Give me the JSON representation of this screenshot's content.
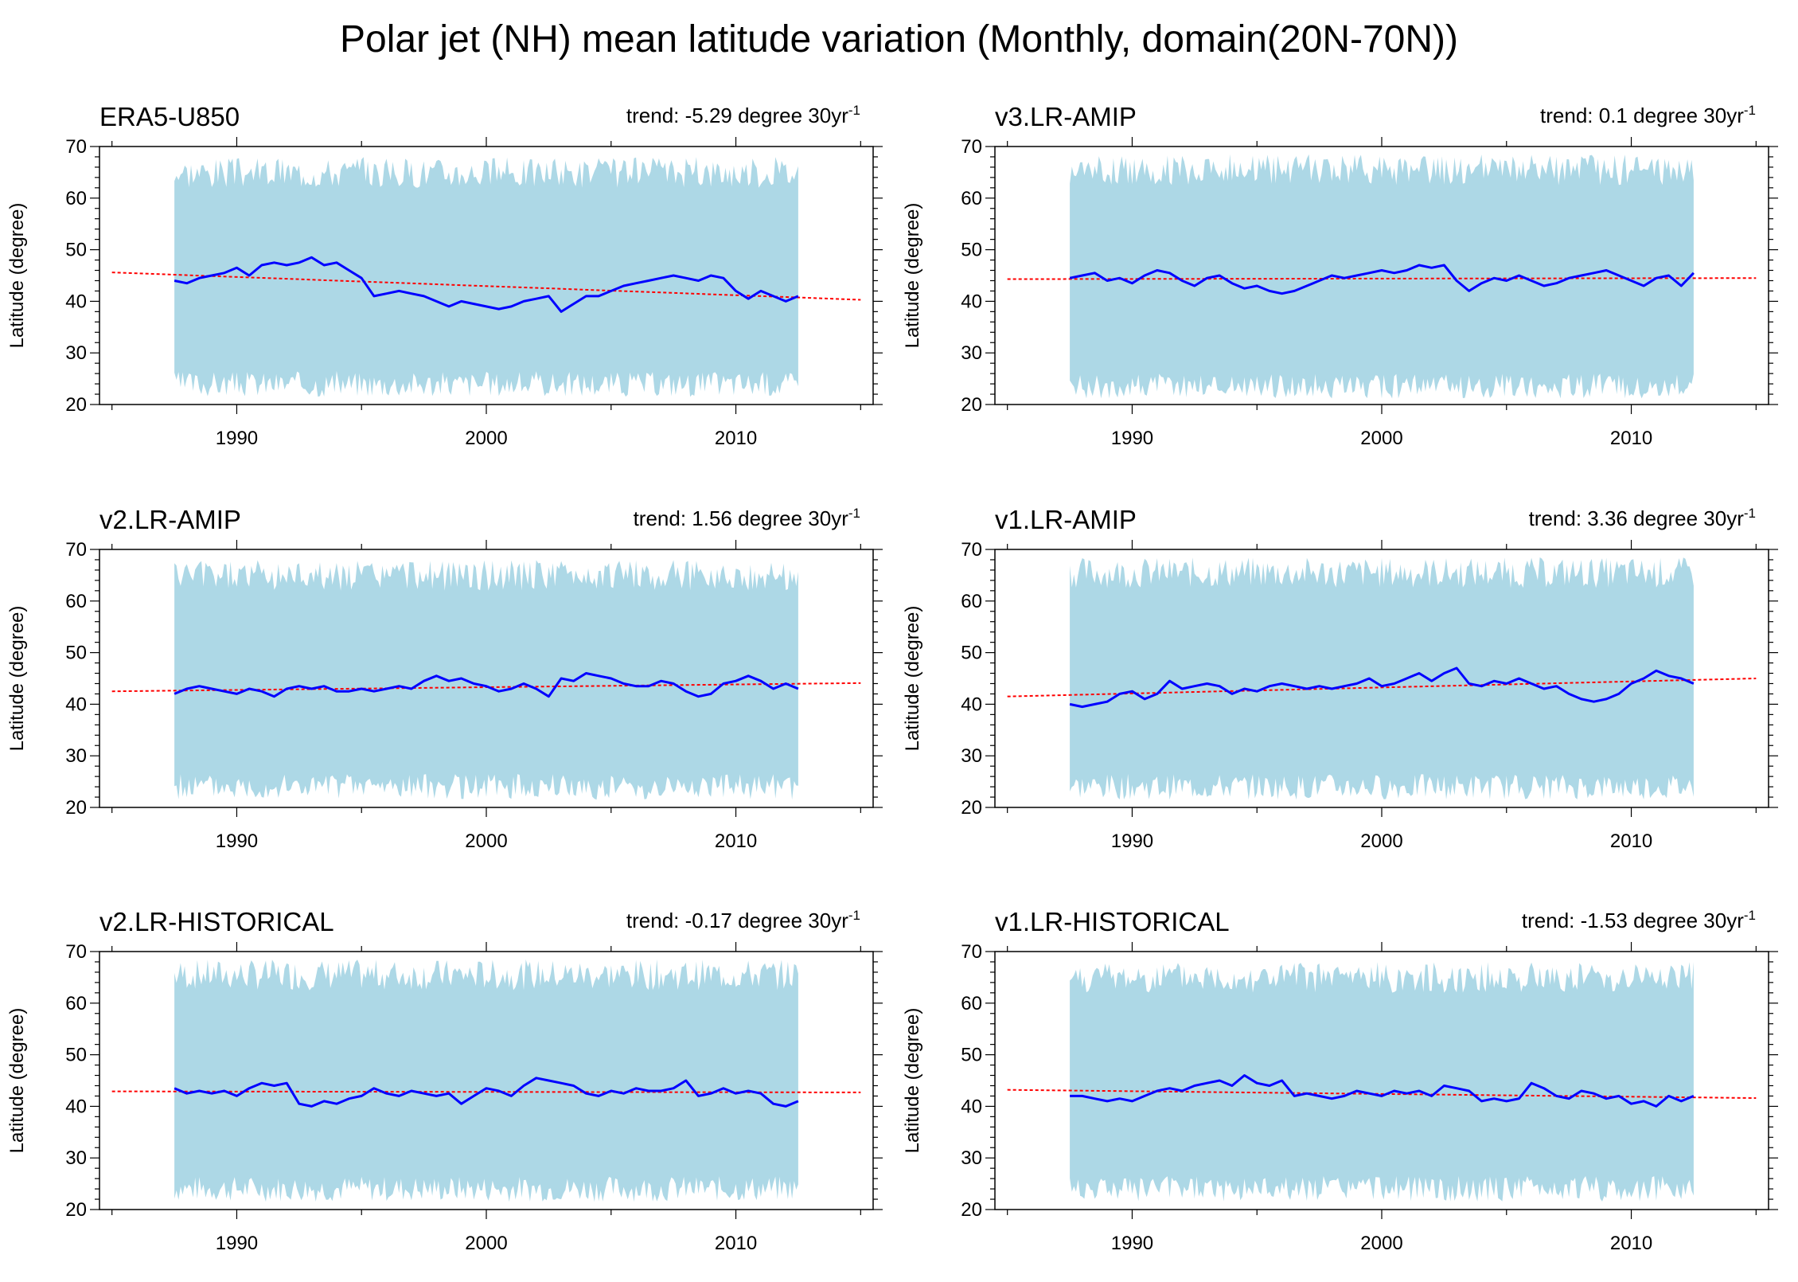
{
  "title": "Polar jet (NH) mean latitude variation (Monthly, domain(20N-70N))",
  "colors": {
    "band": "#add8e6",
    "series": "#0000ff",
    "trend": "#ff0000",
    "axis": "#000000"
  },
  "chart_data": [
    {
      "type": "line",
      "name": "ERA5-U850",
      "trend_label": "trend: -5.29 degree 30yr",
      "trend_unit_exp": "-1",
      "ylabel": "Latitude (degree)",
      "xlabel": "",
      "xlim": [
        1984.5,
        2015.5
      ],
      "ylim": [
        20,
        70
      ],
      "xticks": [
        1990,
        2000,
        2010
      ],
      "yticks": [
        20,
        30,
        40,
        50,
        60,
        70
      ],
      "band": {
        "x_start": 1987.5,
        "x_end": 2012.5,
        "lower_mean": 24,
        "upper_mean": 65
      },
      "series_x": [
        1987.5,
        1988.0,
        1988.5,
        1989.0,
        1989.5,
        1990.0,
        1990.5,
        1991.0,
        1991.5,
        1992.0,
        1992.5,
        1993.0,
        1993.5,
        1994.0,
        1994.5,
        1995.0,
        1995.5,
        1996.0,
        1996.5,
        1997.0,
        1997.5,
        1998.0,
        1998.5,
        1999.0,
        1999.5,
        2000.0,
        2000.5,
        2001.0,
        2001.5,
        2002.0,
        2002.5,
        2003.0,
        2003.5,
        2004.0,
        2004.5,
        2005.0,
        2005.5,
        2006.0,
        2006.5,
        2007.0,
        2007.5,
        2008.0,
        2008.5,
        2009.0,
        2009.5,
        2010.0,
        2010.5,
        2011.0,
        2011.5,
        2012.0,
        2012.5
      ],
      "series_y": [
        44,
        43.5,
        44.5,
        45,
        45.5,
        46.5,
        45,
        47,
        47.5,
        47,
        47.5,
        48.5,
        47,
        47.5,
        46,
        44.5,
        41,
        41.5,
        42,
        41.5,
        41,
        40,
        39,
        40,
        39.5,
        39,
        38.5,
        39,
        40,
        40.5,
        41,
        38,
        39.5,
        41,
        41,
        42,
        43,
        43.5,
        44,
        44.5,
        45,
        44.5,
        44,
        45,
        44.5,
        42,
        40.5,
        42,
        41,
        40,
        41
      ],
      "trend_y": [
        45.6,
        40.3
      ]
    },
    {
      "type": "line",
      "name": "v3.LR-AMIP",
      "trend_label": "trend: 0.1 degree 30yr",
      "trend_unit_exp": "-1",
      "ylabel": "Latitude (degree)",
      "xlabel": "",
      "xlim": [
        1984.5,
        2015.5
      ],
      "ylim": [
        20,
        70
      ],
      "xticks": [
        1990,
        2000,
        2010
      ],
      "yticks": [
        20,
        30,
        40,
        50,
        60,
        70
      ],
      "band": {
        "x_start": 1987.5,
        "x_end": 2012.5,
        "lower_mean": 23.5,
        "upper_mean": 65.5
      },
      "series_x": [
        1987.5,
        1988.0,
        1988.5,
        1989.0,
        1989.5,
        1990.0,
        1990.5,
        1991.0,
        1991.5,
        1992.0,
        1992.5,
        1993.0,
        1993.5,
        1994.0,
        1994.5,
        1995.0,
        1995.5,
        1996.0,
        1996.5,
        1997.0,
        1997.5,
        1998.0,
        1998.5,
        1999.0,
        1999.5,
        2000.0,
        2000.5,
        2001.0,
        2001.5,
        2002.0,
        2002.5,
        2003.0,
        2003.5,
        2004.0,
        2004.5,
        2005.0,
        2005.5,
        2006.0,
        2006.5,
        2007.0,
        2007.5,
        2008.0,
        2008.5,
        2009.0,
        2009.5,
        2010.0,
        2010.5,
        2011.0,
        2011.5,
        2012.0,
        2012.5
      ],
      "series_y": [
        44.5,
        45,
        45.5,
        44,
        44.5,
        43.5,
        45,
        46,
        45.5,
        44,
        43,
        44.5,
        45,
        43.5,
        42.5,
        43,
        42,
        41.5,
        42,
        43,
        44,
        45,
        44.5,
        45,
        45.5,
        46,
        45.5,
        46,
        47,
        46.5,
        47,
        44,
        42,
        43.5,
        44.5,
        44,
        45,
        44,
        43,
        43.5,
        44.5,
        45,
        45.5,
        46,
        45,
        44,
        43,
        44.5,
        45,
        43,
        45.5
      ],
      "trend_y": [
        44.3,
        44.5
      ]
    },
    {
      "type": "line",
      "name": "v2.LR-AMIP",
      "trend_label": "trend: 1.56 degree 30yr",
      "trend_unit_exp": "-1",
      "ylabel": "Latitude (degree)",
      "xlabel": "",
      "xlim": [
        1984.5,
        2015.5
      ],
      "ylim": [
        20,
        70
      ],
      "xticks": [
        1990,
        2000,
        2010
      ],
      "yticks": [
        20,
        30,
        40,
        50,
        60,
        70
      ],
      "band": {
        "x_start": 1987.5,
        "x_end": 2012.5,
        "lower_mean": 24,
        "upper_mean": 65
      },
      "series_x": [
        1987.5,
        1988.0,
        1988.5,
        1989.0,
        1989.5,
        1990.0,
        1990.5,
        1991.0,
        1991.5,
        1992.0,
        1992.5,
        1993.0,
        1993.5,
        1994.0,
        1994.5,
        1995.0,
        1995.5,
        1996.0,
        1996.5,
        1997.0,
        1997.5,
        1998.0,
        1998.5,
        1999.0,
        1999.5,
        2000.0,
        2000.5,
        2001.0,
        2001.5,
        2002.0,
        2002.5,
        2003.0,
        2003.5,
        2004.0,
        2004.5,
        2005.0,
        2005.5,
        2006.0,
        2006.5,
        2007.0,
        2007.5,
        2008.0,
        2008.5,
        2009.0,
        2009.5,
        2010.0,
        2010.5,
        2011.0,
        2011.5,
        2012.0,
        2012.5
      ],
      "series_y": [
        42,
        43,
        43.5,
        43,
        42.5,
        42,
        43,
        42.5,
        41.5,
        43,
        43.5,
        43,
        43.5,
        42.5,
        42.5,
        43,
        42.5,
        43,
        43.5,
        43,
        44.5,
        45.5,
        44.5,
        45,
        44,
        43.5,
        42.5,
        43,
        44,
        43,
        41.5,
        45,
        44.5,
        46,
        45.5,
        45,
        44,
        43.5,
        43.5,
        44.5,
        44,
        42.5,
        41.5,
        42,
        44,
        44.5,
        45.5,
        44.5,
        43,
        44,
        43
      ],
      "trend_y": [
        42.5,
        44.1
      ]
    },
    {
      "type": "line",
      "name": "v1.LR-AMIP",
      "trend_label": "trend: 3.36 degree 30yr",
      "trend_unit_exp": "-1",
      "ylabel": "Latitude (degree)",
      "xlabel": "",
      "xlim": [
        1984.5,
        2015.5
      ],
      "ylim": [
        20,
        70
      ],
      "xticks": [
        1990,
        2000,
        2010
      ],
      "yticks": [
        20,
        30,
        40,
        50,
        60,
        70
      ],
      "band": {
        "x_start": 1987.5,
        "x_end": 2012.5,
        "lower_mean": 24,
        "upper_mean": 65.5
      },
      "series_x": [
        1987.5,
        1988.0,
        1988.5,
        1989.0,
        1989.5,
        1990.0,
        1990.5,
        1991.0,
        1991.5,
        1992.0,
        1992.5,
        1993.0,
        1993.5,
        1994.0,
        1994.5,
        1995.0,
        1995.5,
        1996.0,
        1996.5,
        1997.0,
        1997.5,
        1998.0,
        1998.5,
        1999.0,
        1999.5,
        2000.0,
        2000.5,
        2001.0,
        2001.5,
        2002.0,
        2002.5,
        2003.0,
        2003.5,
        2004.0,
        2004.5,
        2005.0,
        2005.5,
        2006.0,
        2006.5,
        2007.0,
        2007.5,
        2008.0,
        2008.5,
        2009.0,
        2009.5,
        2010.0,
        2010.5,
        2011.0,
        2011.5,
        2012.0,
        2012.5
      ],
      "series_y": [
        40,
        39.5,
        40,
        40.5,
        42,
        42.5,
        41,
        42,
        44.5,
        43,
        43.5,
        44,
        43.5,
        42,
        43,
        42.5,
        43.5,
        44,
        43.5,
        43,
        43.5,
        43,
        43.5,
        44,
        45,
        43.5,
        44,
        45,
        46,
        44.5,
        46,
        47,
        44,
        43.5,
        44.5,
        44,
        45,
        44,
        43,
        43.5,
        42,
        41,
        40.5,
        41,
        42,
        44,
        45,
        46.5,
        45.5,
        45,
        44
      ],
      "trend_y": [
        41.5,
        45.0
      ]
    },
    {
      "type": "line",
      "name": "v2.LR-HISTORICAL",
      "trend_label": "trend: -0.17 degree 30yr",
      "trend_unit_exp": "-1",
      "ylabel": "Latitude (degree)",
      "xlabel": "",
      "xlim": [
        1984.5,
        2015.5
      ],
      "ylim": [
        20,
        70
      ],
      "xticks": [
        1990,
        2000,
        2010
      ],
      "yticks": [
        20,
        30,
        40,
        50,
        60,
        70
      ],
      "band": {
        "x_start": 1987.5,
        "x_end": 2012.5,
        "lower_mean": 24,
        "upper_mean": 65.5
      },
      "series_x": [
        1987.5,
        1988.0,
        1988.5,
        1989.0,
        1989.5,
        1990.0,
        1990.5,
        1991.0,
        1991.5,
        1992.0,
        1992.5,
        1993.0,
        1993.5,
        1994.0,
        1994.5,
        1995.0,
        1995.5,
        1996.0,
        1996.5,
        1997.0,
        1997.5,
        1998.0,
        1998.5,
        1999.0,
        1999.5,
        2000.0,
        2000.5,
        2001.0,
        2001.5,
        2002.0,
        2002.5,
        2003.0,
        2003.5,
        2004.0,
        2004.5,
        2005.0,
        2005.5,
        2006.0,
        2006.5,
        2007.0,
        2007.5,
        2008.0,
        2008.5,
        2009.0,
        2009.5,
        2010.0,
        2010.5,
        2011.0,
        2011.5,
        2012.0,
        2012.5
      ],
      "series_y": [
        43.5,
        42.5,
        43,
        42.5,
        43,
        42,
        43.5,
        44.5,
        44,
        44.5,
        40.5,
        40,
        41,
        40.5,
        41.5,
        42,
        43.5,
        42.5,
        42,
        43,
        42.5,
        42,
        42.5,
        40.5,
        42,
        43.5,
        43,
        42,
        44,
        45.5,
        45,
        44.5,
        44,
        42.5,
        42,
        43,
        42.5,
        43.5,
        43,
        43,
        43.5,
        45,
        42,
        42.5,
        43.5,
        42.5,
        43,
        42.5,
        40.5,
        40,
        41
      ],
      "trend_y": [
        42.9,
        42.7
      ]
    },
    {
      "type": "line",
      "name": "v1.LR-HISTORICAL",
      "trend_label": "trend: -1.53 degree 30yr",
      "trend_unit_exp": "-1",
      "ylabel": "Latitude (degree)",
      "xlabel": "",
      "xlim": [
        1984.5,
        2015.5
      ],
      "ylim": [
        20,
        70
      ],
      "xticks": [
        1990,
        2000,
        2010
      ],
      "yticks": [
        20,
        30,
        40,
        50,
        60,
        70
      ],
      "band": {
        "x_start": 1987.5,
        "x_end": 2012.5,
        "lower_mean": 24,
        "upper_mean": 65
      },
      "series_x": [
        1987.5,
        1988.0,
        1988.5,
        1989.0,
        1989.5,
        1990.0,
        1990.5,
        1991.0,
        1991.5,
        1992.0,
        1992.5,
        1993.0,
        1993.5,
        1994.0,
        1994.5,
        1995.0,
        1995.5,
        1996.0,
        1996.5,
        1997.0,
        1997.5,
        1998.0,
        1998.5,
        1999.0,
        1999.5,
        2000.0,
        2000.5,
        2001.0,
        2001.5,
        2002.0,
        2002.5,
        2003.0,
        2003.5,
        2004.0,
        2004.5,
        2005.0,
        2005.5,
        2006.0,
        2006.5,
        2007.0,
        2007.5,
        2008.0,
        2008.5,
        2009.0,
        2009.5,
        2010.0,
        2010.5,
        2011.0,
        2011.5,
        2012.0,
        2012.5
      ],
      "series_y": [
        42,
        42,
        41.5,
        41,
        41.5,
        41,
        42,
        43,
        43.5,
        43,
        44,
        44.5,
        45,
        44,
        46,
        44.5,
        44,
        45,
        42,
        42.5,
        42,
        41.5,
        42,
        43,
        42.5,
        42,
        43,
        42.5,
        43,
        42,
        44,
        43.5,
        43,
        41,
        41.5,
        41,
        41.5,
        44.5,
        43.5,
        42,
        41.5,
        43,
        42.5,
        41.5,
        42,
        40.5,
        41,
        40,
        42,
        41,
        42
      ],
      "trend_y": [
        43.2,
        41.6
      ]
    }
  ]
}
